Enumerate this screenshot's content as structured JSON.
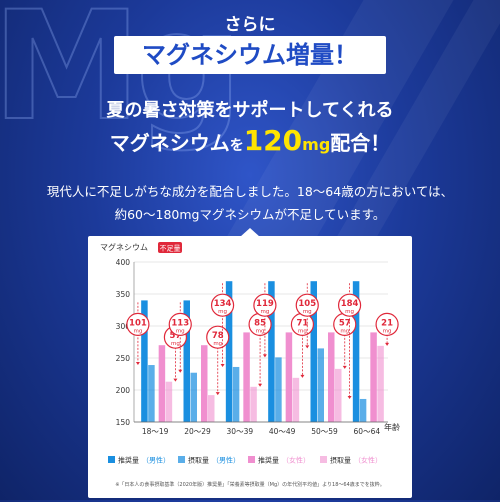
{
  "header": {
    "intro": "さらに",
    "badge": "マグネシウム増量！",
    "line1": "夏の暑さ対策をサポートしてくれる",
    "line2_pre": "マグネシウム",
    "line2_particle": "を",
    "line2_amount": "120",
    "line2_unit": "mg",
    "line2_post": "配合！",
    "bg_letters": "Mg"
  },
  "description": {
    "line1": "現代人に不足しがちな成分を配合しました。18〜64歳の方においては、",
    "line2": "約60〜180mgマグネシウムが不足しています。"
  },
  "colors": {
    "recommended": "#1a8fe0",
    "intake": "#f08fcf",
    "deficit_bubble": "#e0283a",
    "badge_text": "#1f4bc4"
  },
  "chart_data": {
    "type": "bar",
    "ylabel": "マグネシウム",
    "deficit_label": "不足量",
    "xlabel": "年齢",
    "ylim": [
      150,
      400
    ],
    "yticks": [
      150,
      200,
      250,
      300,
      350,
      400
    ],
    "categories": [
      "18〜19",
      "20〜29",
      "30〜39",
      "40〜49",
      "50〜59",
      "60〜64"
    ],
    "series": [
      {
        "name": "推奨量",
        "sex": "男性",
        "values": [
          340,
          340,
          370,
          370,
          370,
          370
        ]
      },
      {
        "name": "摂取量",
        "sex": "男性",
        "values": [
          239,
          227,
          236,
          251,
          265,
          186
        ]
      },
      {
        "name": "推奨量",
        "sex": "女性",
        "values": [
          270,
          270,
          290,
          290,
          290,
          290
        ]
      },
      {
        "name": "摂取量",
        "sex": "女性",
        "values": [
          213,
          192,
          205,
          219,
          233,
          269
        ]
      }
    ],
    "male_deficit": [
      101,
      113,
      134,
      119,
      105,
      184
    ],
    "female_deficit": [
      57,
      78,
      85,
      71,
      57,
      21
    ],
    "deficit_unit": "mg",
    "legend": [
      {
        "label": "推奨量",
        "paren": "（男性）"
      },
      {
        "label": "摂取量",
        "paren": "（男性）"
      },
      {
        "label": "推奨量",
        "paren": "（女性）"
      },
      {
        "label": "摂取量",
        "paren": "（女性）"
      }
    ],
    "footnote": "※「日本人の食事摂取基準（2020年版）推奨量」「栄養素等摂取量（Mg）の年代別平均値」より18〜64歳までを抜粋。"
  }
}
